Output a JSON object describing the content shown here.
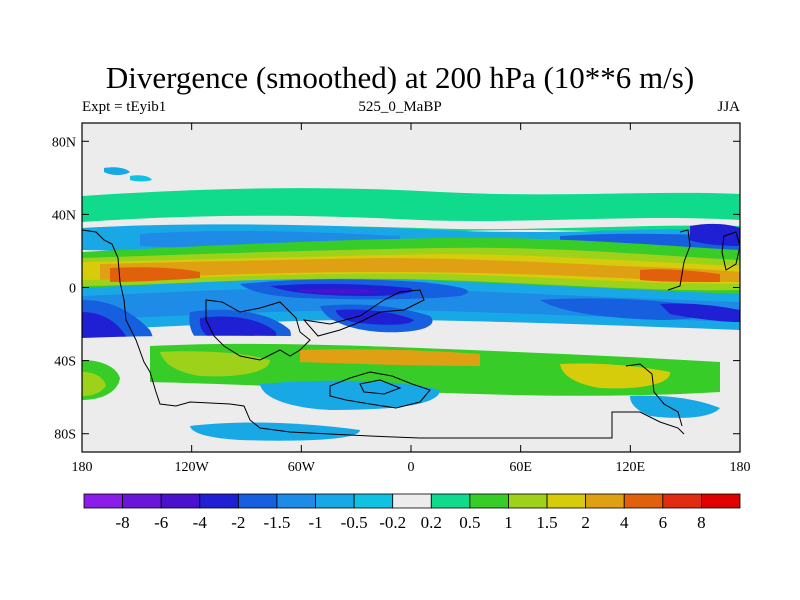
{
  "title": "Divergence (smoothed) at 200 hPa (10**6 m/s)",
  "subtitle_left": "Expt = tEyib1",
  "subtitle_center": "525_0_MaBP",
  "subtitle_right": "JJA",
  "map": {
    "lon_range": [
      -180,
      180
    ],
    "lat_range": [
      -90,
      90
    ],
    "x_ticks": [
      "180",
      "120W",
      "60W",
      "0",
      "60E",
      "120E",
      "180"
    ],
    "y_ticks": [
      "80N",
      "40N",
      "0",
      "40S",
      "80S"
    ]
  },
  "colorbar": {
    "labels": [
      "-8",
      "-6",
      "-4",
      "-2",
      "-1.5",
      "-1",
      "-0.5",
      "-0.2",
      "0.2",
      "0.5",
      "1",
      "1.5",
      "2",
      "4",
      "6",
      "8"
    ],
    "colors": [
      "#8a1ee8",
      "#6a16d8",
      "#4a12cc",
      "#1f1fd4",
      "#1660e0",
      "#1e8ce6",
      "#19a8e6",
      "#10c2e2",
      "#ececec",
      "#10da8c",
      "#38cc28",
      "#9ed21a",
      "#d6cc0c",
      "#e0a014",
      "#e0600c",
      "#e02c10",
      "#e00000"
    ]
  }
}
